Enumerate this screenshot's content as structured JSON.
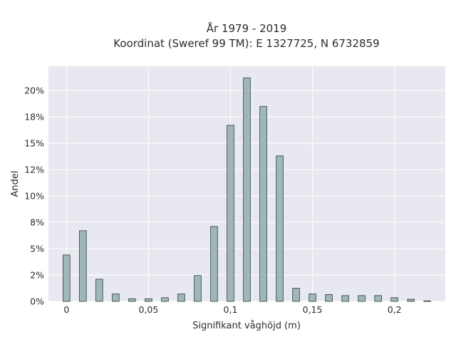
{
  "chart_data": {
    "type": "bar",
    "title_lines": [
      "År 1979 - 2019",
      "Koordinat (Sweref 99 TM): E 1327725, N 6732859"
    ],
    "xlabel": "Signifikant våghöjd (m)",
    "ylabel": "Andel",
    "x_ticks": [
      {
        "value": 0,
        "label": "0"
      },
      {
        "value": 0.05,
        "label": "0,05"
      },
      {
        "value": 0.1,
        "label": "0,1"
      },
      {
        "value": 0.15,
        "label": "0,15"
      },
      {
        "value": 0.2,
        "label": "0,2"
      }
    ],
    "y_ticks": [
      {
        "value": 0,
        "label": "0%"
      },
      {
        "value": 2.5,
        "label": "2%"
      },
      {
        "value": 5,
        "label": "5%"
      },
      {
        "value": 7.5,
        "label": "8%"
      },
      {
        "value": 10,
        "label": "10%"
      },
      {
        "value": 12.5,
        "label": "12%"
      },
      {
        "value": 15,
        "label": "15%"
      },
      {
        "value": 17.5,
        "label": "18%"
      },
      {
        "value": 20,
        "label": "20%"
      }
    ],
    "xlim": [
      -0.011,
      0.231
    ],
    "ylim": [
      0,
      22.3
    ],
    "bar_width": 0.0042,
    "x": [
      0,
      0.01,
      0.02,
      0.03,
      0.04,
      0.05,
      0.06,
      0.07,
      0.08,
      0.09,
      0.1,
      0.11,
      0.12,
      0.13,
      0.14,
      0.15,
      0.16,
      0.17,
      0.18,
      0.19,
      0.2,
      0.21,
      0.22
    ],
    "values": [
      4.4,
      6.7,
      2.1,
      0.7,
      0.25,
      0.25,
      0.35,
      0.7,
      2.45,
      7.1,
      16.7,
      21.2,
      18.5,
      13.8,
      1.25,
      0.7,
      0.65,
      0.55,
      0.55,
      0.55,
      0.35,
      0.2,
      0.05
    ],
    "grid": true,
    "colors": {
      "bar_fill": "#9fb7b9",
      "bar_stroke": "#2f3a3b",
      "plot_background": "#e8e8f0",
      "grid": "#ffffff"
    }
  }
}
